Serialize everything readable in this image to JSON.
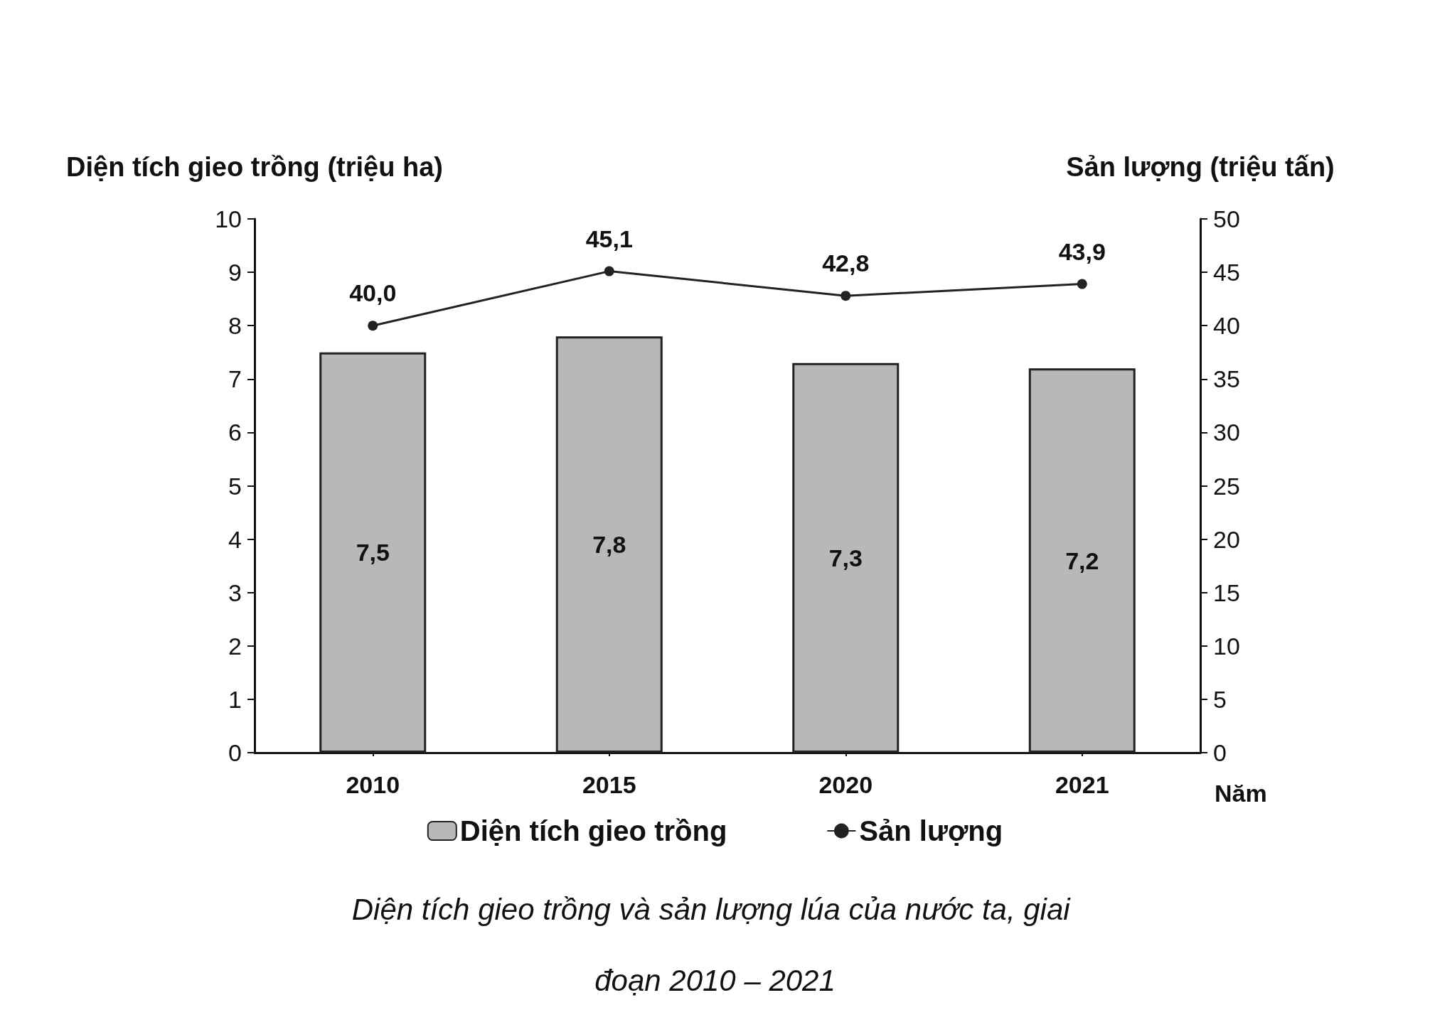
{
  "chart_data": {
    "type": "bar",
    "title": "Diện tích gieo trồng và sản lượng lúa của nước ta, giai đoạn 2010 – 2021",
    "xlabel": "Năm",
    "ylabel": "Diện tích gieo trồng (triệu ha)",
    "y2label": "Sản lượng (triệu tấn)",
    "categories": [
      "2010",
      "2015",
      "2020",
      "2021"
    ],
    "series": [
      {
        "name": "Diện tích gieo trồng",
        "color": "#b8b8b8",
        "values": [
          7.5,
          7.8,
          7.3,
          7.2
        ],
        "value_labels": [
          "7,5",
          "7,8",
          "7,3",
          "7,2"
        ]
      },
      {
        "name": "Sản lượng",
        "type": "line",
        "axis": "y2",
        "color": "#222222",
        "values": [
          40.0,
          45.1,
          42.8,
          43.9
        ],
        "value_labels": [
          "40,0",
          "45,1",
          "42,8",
          "43,9"
        ]
      }
    ],
    "ylim": [
      0,
      10
    ],
    "yticks": [
      0,
      1,
      2,
      3,
      4,
      5,
      6,
      7,
      8,
      9,
      10
    ],
    "y2lim": [
      0,
      50
    ],
    "y2ticks": [
      0,
      5,
      10,
      15,
      20,
      25,
      30,
      35,
      40,
      45,
      50
    ],
    "grid": false,
    "legend": "bottom",
    "marker": "circle",
    "line_style": "solid"
  }
}
